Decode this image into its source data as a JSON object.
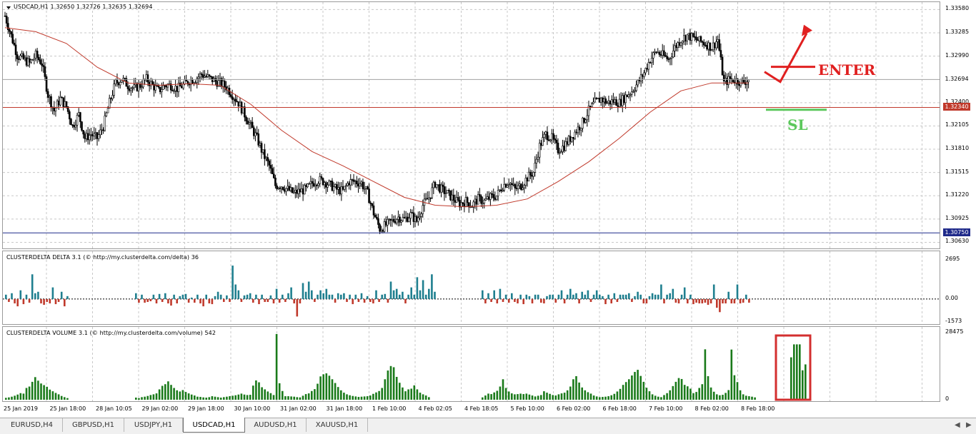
{
  "chart_data": [
    {
      "type": "candlestick",
      "title": "USDCAD,H1  1.32650 1.32726 1.32635 1.32694",
      "series": [
        {
          "name": "USDCAD,H1",
          "kind": "candlestick"
        },
        {
          "kind": "moving-average",
          "color": "#c0392b"
        }
      ],
      "ohlc_last": {
        "open": 1.3265,
        "high": 1.32726,
        "low": 1.32635,
        "close": 1.32694
      },
      "close_path": [
        [
          0,
          1.335
        ],
        [
          4,
          1.3325
        ],
        [
          8,
          1.33
        ],
        [
          12,
          1.3295
        ],
        [
          16,
          1.329
        ],
        [
          20,
          1.33
        ],
        [
          24,
          1.329
        ],
        [
          28,
          1.325
        ],
        [
          32,
          1.323
        ],
        [
          36,
          1.3245
        ],
        [
          40,
          1.3235
        ],
        [
          44,
          1.321
        ],
        [
          48,
          1.3225
        ],
        [
          52,
          1.3195
        ],
        [
          56,
          1.32
        ],
        [
          60,
          1.3195
        ],
        [
          64,
          1.321
        ],
        [
          68,
          1.324
        ],
        [
          72,
          1.3265
        ],
        [
          76,
          1.327
        ],
        [
          80,
          1.3262
        ],
        [
          84,
          1.3258
        ],
        [
          88,
          1.3262
        ],
        [
          92,
          1.327
        ],
        [
          96,
          1.3262
        ],
        [
          100,
          1.3255
        ],
        [
          104,
          1.3262
        ],
        [
          108,
          1.3262
        ],
        [
          112,
          1.3258
        ],
        [
          116,
          1.3262
        ],
        [
          120,
          1.3268
        ],
        [
          124,
          1.327
        ],
        [
          128,
          1.3276
        ],
        [
          132,
          1.3272
        ],
        [
          136,
          1.3268
        ],
        [
          140,
          1.3265
        ],
        [
          144,
          1.326
        ],
        [
          148,
          1.325
        ],
        [
          152,
          1.324
        ],
        [
          156,
          1.3225
        ],
        [
          160,
          1.321
        ],
        [
          164,
          1.3195
        ],
        [
          168,
          1.3175
        ],
        [
          172,
          1.316
        ],
        [
          176,
          1.3135
        ],
        [
          180,
          1.3135
        ],
        [
          184,
          1.313
        ],
        [
          188,
          1.3125
        ],
        [
          192,
          1.3128
        ],
        [
          196,
          1.313
        ],
        [
          200,
          1.3138
        ],
        [
          204,
          1.3142
        ],
        [
          208,
          1.314
        ],
        [
          212,
          1.3135
        ],
        [
          216,
          1.313
        ],
        [
          220,
          1.3128
        ],
        [
          224,
          1.314
        ],
        [
          228,
          1.314
        ],
        [
          232,
          1.3138
        ],
        [
          236,
          1.3125
        ],
        [
          240,
          1.31
        ],
        [
          244,
          1.308
        ],
        [
          248,
          1.3085
        ],
        [
          252,
          1.309
        ],
        [
          256,
          1.3095
        ],
        [
          260,
          1.3092
        ],
        [
          264,
          1.3098
        ],
        [
          268,
          1.309
        ],
        [
          272,
          1.311
        ],
        [
          276,
          1.312
        ],
        [
          280,
          1.3138
        ],
        [
          284,
          1.313
        ],
        [
          288,
          1.3125
        ],
        [
          292,
          1.3118
        ],
        [
          296,
          1.3112
        ],
        [
          300,
          1.3115
        ],
        [
          304,
          1.311
        ],
        [
          308,
          1.3118
        ],
        [
          312,
          1.3115
        ],
        [
          316,
          1.312
        ],
        [
          320,
          1.3122
        ],
        [
          324,
          1.3135
        ],
        [
          328,
          1.314
        ],
        [
          332,
          1.313
        ],
        [
          336,
          1.3135
        ],
        [
          340,
          1.3145
        ],
        [
          344,
          1.3152
        ],
        [
          348,
          1.3185
        ],
        [
          352,
          1.32
        ],
        [
          356,
          1.3195
        ],
        [
          360,
          1.318
        ],
        [
          364,
          1.3185
        ],
        [
          368,
          1.3195
        ],
        [
          372,
          1.3205
        ],
        [
          376,
          1.3215
        ],
        [
          380,
          1.323
        ],
        [
          384,
          1.324
        ],
        [
          388,
          1.3245
        ],
        [
          392,
          1.324
        ],
        [
          396,
          1.3242
        ],
        [
          400,
          1.324
        ],
        [
          404,
          1.3248
        ],
        [
          408,
          1.3255
        ],
        [
          412,
          1.3265
        ],
        [
          416,
          1.3278
        ],
        [
          420,
          1.3295
        ],
        [
          424,
          1.3305
        ],
        [
          428,
          1.33
        ],
        [
          432,
          1.3295
        ],
        [
          436,
          1.331
        ],
        [
          440,
          1.332
        ],
        [
          444,
          1.3325
        ],
        [
          448,
          1.3322
        ],
        [
          452,
          1.3318
        ],
        [
          456,
          1.3315
        ],
        [
          460,
          1.331
        ],
        [
          464,
          1.332
        ],
        [
          468,
          1.3265
        ],
        [
          472,
          1.327
        ],
        [
          476,
          1.3268
        ],
        [
          480,
          1.3266
        ],
        [
          484,
          1.3269
        ]
      ],
      "ma_path": [
        [
          0,
          1.3335
        ],
        [
          20,
          1.333
        ],
        [
          40,
          1.3315
        ],
        [
          60,
          1.3285
        ],
        [
          80,
          1.3265
        ],
        [
          100,
          1.3262
        ],
        [
          120,
          1.3264
        ],
        [
          140,
          1.3262
        ],
        [
          160,
          1.3238
        ],
        [
          180,
          1.3205
        ],
        [
          200,
          1.3178
        ],
        [
          220,
          1.316
        ],
        [
          240,
          1.314
        ],
        [
          260,
          1.312
        ],
        [
          280,
          1.311
        ],
        [
          300,
          1.3108
        ],
        [
          320,
          1.311
        ],
        [
          340,
          1.3118
        ],
        [
          360,
          1.314
        ],
        [
          380,
          1.3165
        ],
        [
          400,
          1.3195
        ],
        [
          420,
          1.3228
        ],
        [
          440,
          1.3255
        ],
        [
          460,
          1.3265
        ],
        [
          484,
          1.3265
        ]
      ],
      "ylim": [
        1.3058,
        1.3362
      ],
      "y_ticks": [
        "1.33580",
        "1.33285",
        "1.32990",
        "1.32400",
        "1.32105",
        "1.31810",
        "1.31515",
        "1.31220",
        "1.30925",
        "1.30630"
      ],
      "bid_tag": "1.32694",
      "bid_value": 1.32694,
      "hlines": [
        {
          "value": 1.3234,
          "label": "1.32340",
          "color": "#c0392b"
        },
        {
          "value": 1.3075,
          "label": "1.30750",
          "color": "#1f2a8a"
        }
      ],
      "x_labels": [
        "25 Jan 2019",
        "25 Jan 18:00",
        "28 Jan 10:05",
        "29 Jan 02:00",
        "29 Jan 18:00",
        "30 Jan 10:00",
        "31 Jan 02:00",
        "31 Jan 18:00",
        "1 Feb 10:00",
        "4 Feb 02:05",
        "4 Feb 18:05",
        "5 Feb 10:00",
        "6 Feb 02:00",
        "6 Feb 18:00",
        "7 Feb 10:00",
        "8 Feb 02:00",
        "8 Feb 18:00"
      ],
      "grid": true,
      "annotations": {
        "enter": "ENTER",
        "sl": "SL"
      }
    },
    {
      "type": "bar",
      "title": "CLUSTERDELTA DELTA 3.1 (© http://my.clusterdelta.com/delta) 36",
      "ylim": [
        -1573,
        2695
      ],
      "y_ticks": [
        "2695",
        "0.00",
        "-1573"
      ],
      "colors": {
        "positive": "#1f7f8f",
        "negative": "#c0392b"
      },
      "segments": [
        {
          "start": 0,
          "values": [
            300,
            -200,
            400,
            -300,
            -500,
            600,
            -350,
            300,
            -250,
            1700,
            400,
            500,
            -300,
            -400,
            -200,
            -300,
            800,
            -350,
            -200,
            500,
            -500,
            200
          ]
        },
        {
          "start": 182,
          "values": [
            400,
            -250,
            300,
            -250,
            -200,
            -150,
            300,
            -300,
            350,
            -200,
            400,
            -300,
            -450,
            300,
            -300,
            200,
            300,
            350,
            -250,
            100,
            -250,
            300,
            -300,
            -500,
            300,
            -300,
            -350,
            200,
            500,
            300,
            -200,
            250,
            -200,
            2300,
            1000,
            600,
            -200,
            250,
            300,
            400,
            -250,
            300,
            -350,
            300,
            -200,
            -200,
            250,
            -300,
            700,
            -250,
            300,
            -200,
            400,
            800,
            -300,
            -1200,
            -300,
            1100,
            500,
            1200,
            600,
            -200,
            300,
            600,
            400,
            700,
            300,
            300,
            -250,
            400,
            300,
            400,
            -200,
            300,
            -350,
            300,
            -200,
            400,
            -250,
            200,
            -200,
            -300,
            600,
            -200,
            300,
            350,
            -250,
            1200,
            600,
            700,
            300,
            500,
            -300,
            300,
            800,
            300,
            1500,
            600,
            1300,
            300,
            700,
            1700,
            500
          ]
        },
        {
          "start": 667,
          "values": [
            600,
            -300,
            400,
            -200,
            600,
            -300,
            700,
            -200,
            300,
            -250,
            400,
            -200,
            -300,
            300,
            -350,
            300,
            200,
            -300,
            300,
            300,
            -250,
            -300,
            200,
            300,
            300,
            -250,
            300,
            600,
            -300,
            300,
            700,
            300,
            400,
            -300,
            500,
            300,
            600,
            -200,
            300,
            600,
            300,
            200,
            -350,
            300,
            -300,
            400,
            -200,
            300,
            300,
            300,
            400,
            -200,
            200,
            500,
            300,
            -300,
            -300,
            200,
            400,
            300,
            300,
            1000,
            -300,
            300,
            400,
            700,
            -250,
            -300,
            300,
            800,
            -300,
            300,
            -350,
            -250,
            -300,
            -300,
            -250,
            -400,
            -300,
            1000,
            -600,
            -900,
            -300,
            -300,
            500,
            -300,
            -300,
            1000,
            -300,
            -250,
            300,
            -250
          ]
        }
      ]
    },
    {
      "type": "bar",
      "title": "CLUSTERDELTA VOLUME 3.1 (© http://my.clusterdelta.com/volume) 542",
      "ylim": [
        0,
        28475
      ],
      "y_ticks": [
        "28475",
        "0"
      ],
      "color": "#1a7a1a",
      "segments": [
        {
          "start": 0,
          "values": [
            800,
            1000,
            1300,
            1700,
            2200,
            2800,
            2600,
            5000,
            5600,
            7600,
            9600,
            8100,
            6900,
            6200,
            5500,
            4300,
            3600,
            2900,
            2300,
            1600,
            1100,
            700
          ]
        },
        {
          "start": 182,
          "values": [
            900,
            700,
            1100,
            1300,
            1600,
            2000,
            2300,
            2700,
            4400,
            5900,
            6600,
            7800,
            6300,
            5000,
            4000,
            3500,
            4100,
            3300,
            2700,
            2200,
            1800,
            1300,
            1200,
            1000,
            900,
            1100,
            1500,
            1300,
            1100,
            900,
            1100,
            1300,
            1500,
            1700,
            1900,
            2200,
            2600,
            2200,
            2000,
            2100,
            6000,
            8200,
            7400,
            5300,
            4400,
            3500,
            2800,
            2000,
            27900,
            7000,
            3700,
            1500,
            1500,
            1400,
            1300,
            1100,
            1000,
            1700,
            2400,
            2700,
            3700,
            4500,
            6800,
            9900,
            10800,
            11200,
            10200,
            8700,
            7100,
            5400,
            4000,
            3000,
            2300,
            1900,
            1600,
            1400,
            1200,
            1300,
            1400,
            1500,
            1800,
            2500,
            3100,
            3700,
            5000,
            8700,
            12400,
            14300,
            13800,
            9700,
            7200,
            5200,
            3600,
            4400,
            4700,
            6100,
            4400,
            3000,
            2300,
            1800,
            1100
          ]
        },
        {
          "start": 667,
          "values": [
            1000,
            1800,
            2600,
            2400,
            3100,
            3800,
            5600,
            8700,
            5000,
            3500,
            2700,
            2300,
            2400,
            2600,
            2400,
            2600,
            2200,
            1800,
            1400,
            1700,
            2000,
            3600,
            3000,
            2500,
            2000,
            1800,
            2300,
            2700,
            3000,
            4000,
            5600,
            8700,
            10000,
            7300,
            5200,
            4000,
            3200,
            2600,
            1800,
            1400,
            1100,
            1200,
            1300,
            1500,
            1900,
            2500,
            3500,
            4600,
            6300,
            7500,
            8700,
            10300,
            11800,
            12700,
            10100,
            7600,
            5100,
            3600,
            2300,
            1700,
            1300,
            1100,
            2000,
            2800,
            4000,
            5800,
            7600,
            9200,
            8800,
            6300,
            5700,
            4700,
            2800,
            3300,
            5000,
            6600,
            21400,
            10000,
            5200,
            3400,
            2300,
            1900,
            2100,
            2900,
            4100,
            21300,
            10400,
            7500,
            4000,
            2300,
            1700,
            1500,
            1300,
            1000
          ]
        },
        {
          "start": 1099,
          "values": [
            18000,
            23500,
            23500,
            23500,
            12500,
            15000
          ]
        }
      ]
    }
  ],
  "tabs": [
    "EURUSD,H4",
    "GBPUSD,H1",
    "USDJPY,H1",
    "USDCAD,H1",
    "AUDUSD,H1",
    "XAUUSD,H1"
  ],
  "active_tab": "USDCAD,H1"
}
